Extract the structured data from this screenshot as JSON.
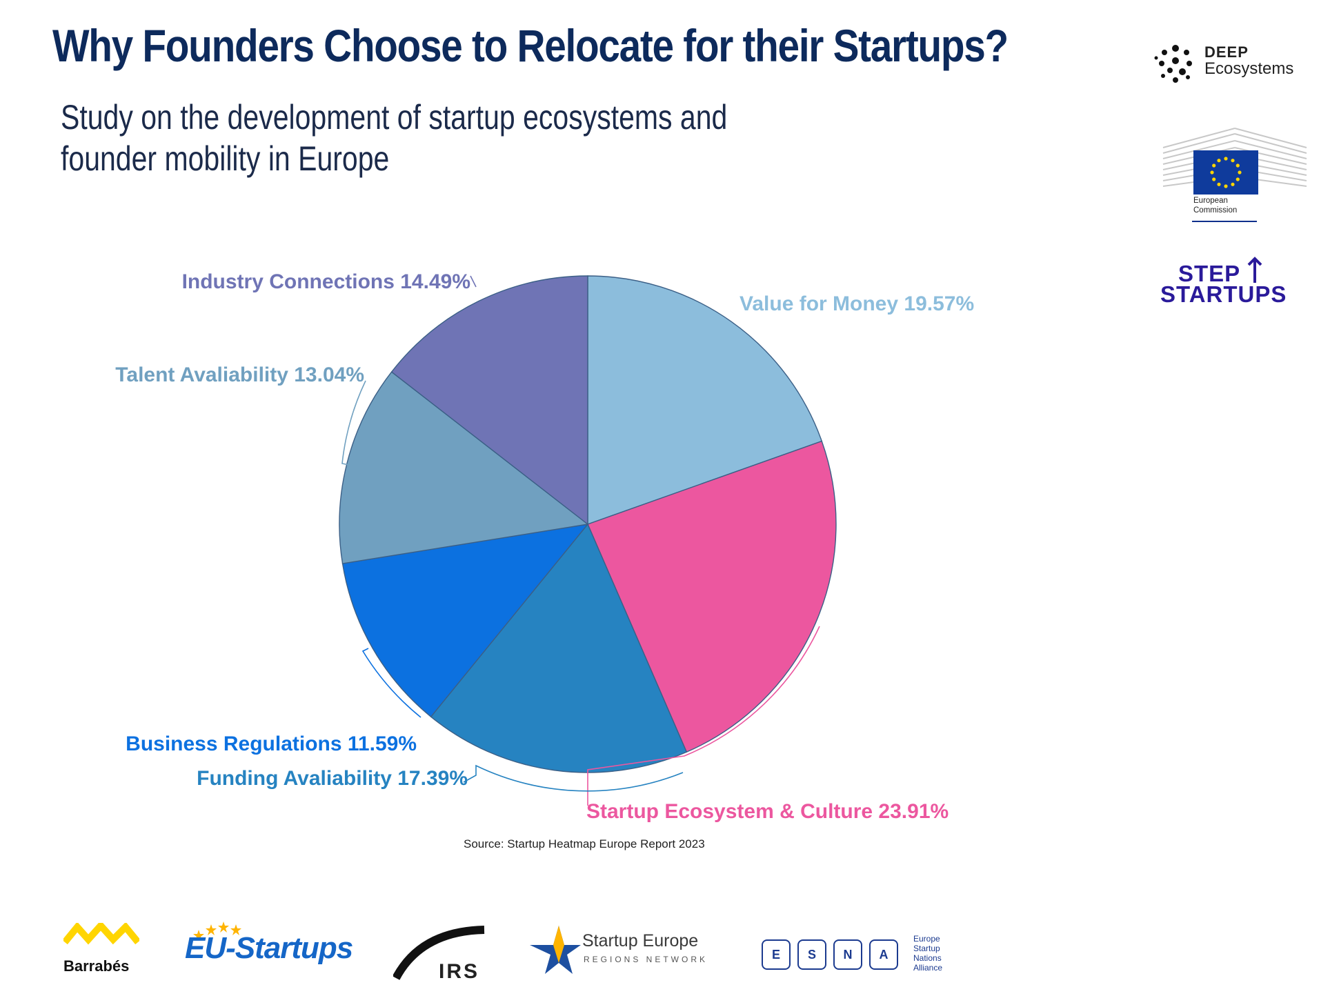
{
  "header": {
    "title": "Why Founders Choose to Relocate for their Startups?",
    "subtitle_line1": "Study on the development of startup ecosystems and",
    "subtitle_line2": "founder mobility in Europe"
  },
  "chart_data": {
    "type": "pie",
    "start_angle_deg": 0,
    "direction": "clockwise",
    "slices": [
      {
        "label": "Value for Money",
        "value": 19.57,
        "value_text": "19.57%",
        "color": "#8cbddc"
      },
      {
        "label": "Startup Ecosystem & Culture",
        "value": 23.91,
        "value_text": "23.91%",
        "color": "#ec579f"
      },
      {
        "label": "Funding Avaliability",
        "value": 17.39,
        "value_text": "17.39%",
        "color": "#2683c1"
      },
      {
        "label": "Business Regulations",
        "value": 11.59,
        "value_text": "11.59%",
        "color": "#0c71e0"
      },
      {
        "label": "Talent Avaliability",
        "value": 13.04,
        "value_text": "13.04%",
        "color": "#70a0c0"
      },
      {
        "label": "Industry Connections",
        "value": 14.49,
        "value_text": "14.49%",
        "color": "#6f74b5"
      }
    ],
    "source": "Source: Startup Heatmap Europe Report 2023"
  },
  "logos": {
    "deep_line1": "DEEP",
    "deep_line2": "Ecosystems",
    "ec_line1": "European",
    "ec_line2": "Commission",
    "step_line1": "STEP",
    "step_line2": "STARTUPS",
    "barrabes": "Barrabés",
    "eu_startups": "EU-Startups",
    "irs": "IRS",
    "ser_line1": "Startup Europe",
    "ser_line2": "REGIONS NETWORK",
    "esna_letters": [
      "E",
      "S",
      "N",
      "A"
    ],
    "esna_side": [
      "Europe",
      "Startup",
      "Nations",
      "Alliance"
    ]
  },
  "colors": {
    "title": "#0d2a5c",
    "ec_blue": "#0f3b9c",
    "ec_yellow": "#ffd500",
    "esna": "#1b3a8f"
  }
}
